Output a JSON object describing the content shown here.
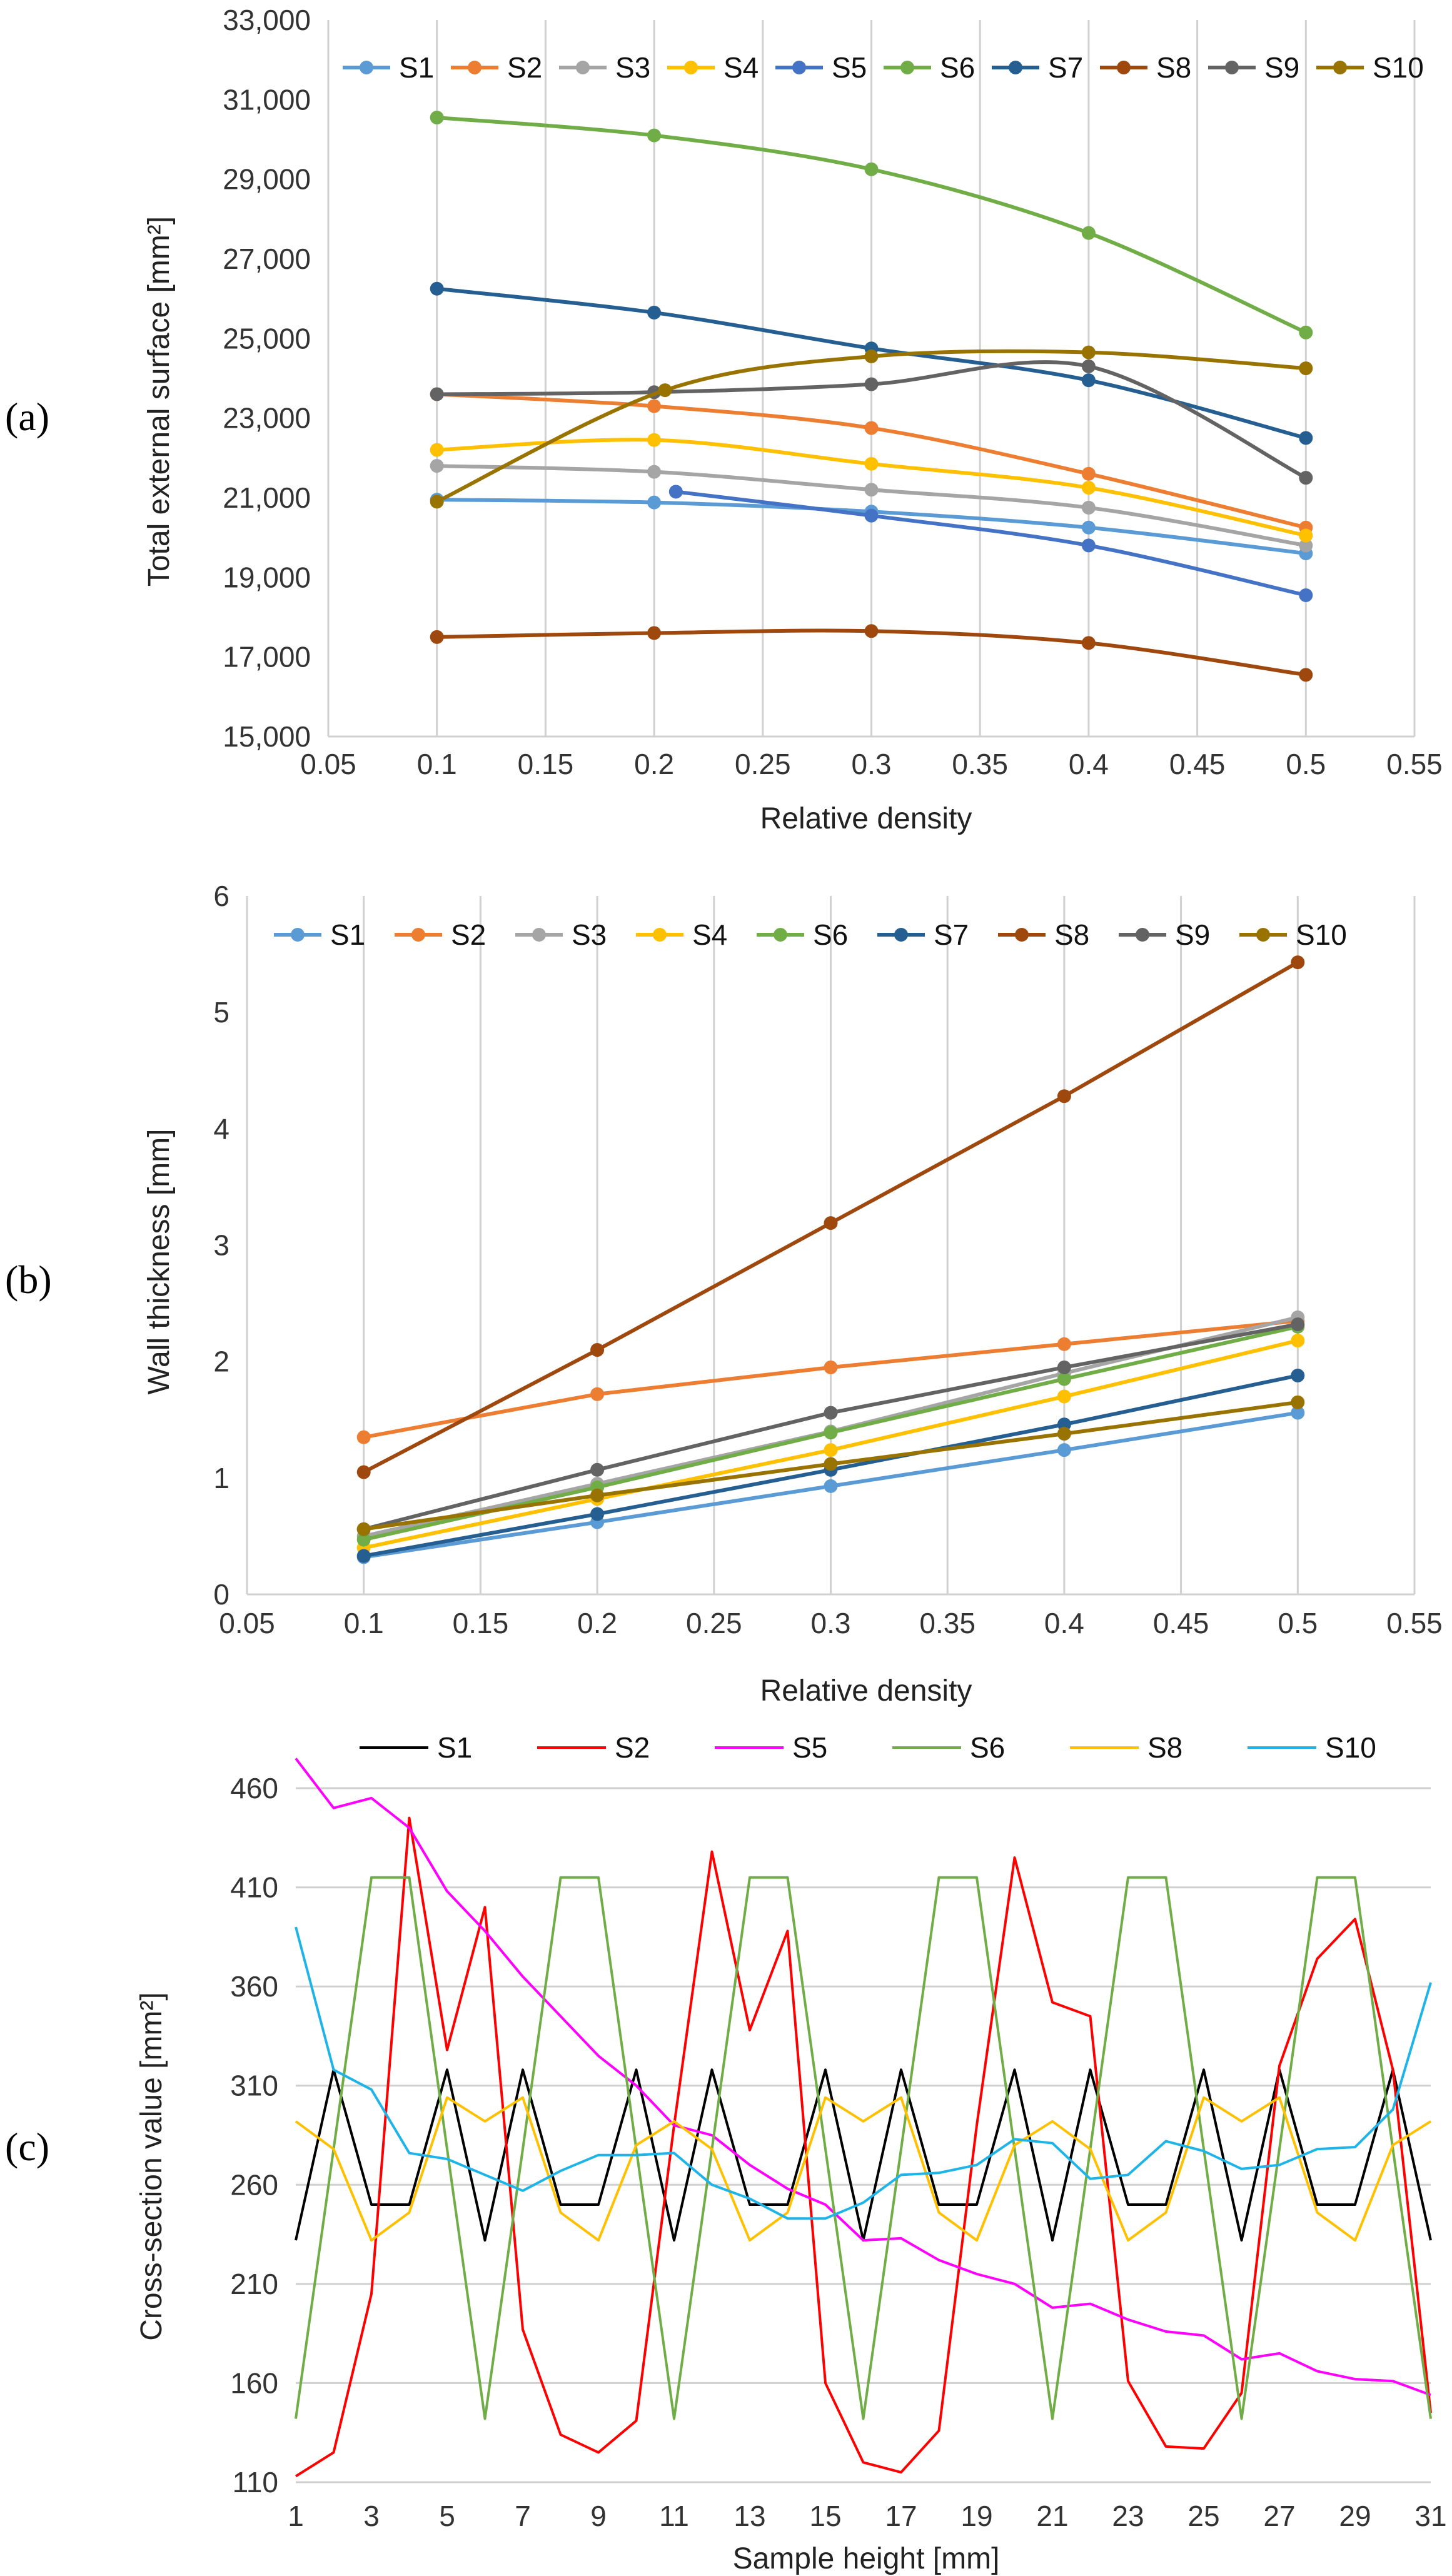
{
  "panels": [
    {
      "label": "(a)",
      "chart_data": {
        "type": "line",
        "xlabel": "Relative density",
        "ylabel": "Total external surface [mm²]",
        "xlim": [
          0.05,
          0.55
        ],
        "ylim": [
          15000,
          33000
        ],
        "xticks": [
          0.05,
          0.1,
          0.15,
          0.2,
          0.25,
          0.3,
          0.35,
          0.4,
          0.45,
          0.5,
          0.55
        ],
        "yticks": [
          15000,
          17000,
          19000,
          21000,
          23000,
          25000,
          27000,
          29000,
          31000,
          33000
        ],
        "xtick_labels": [
          "0.05",
          "0.1",
          "0.15",
          "0.2",
          "0.25",
          "0.3",
          "0.35",
          "0.4",
          "0.45",
          "0.5",
          "0.55"
        ],
        "ytick_labels": [
          "15,000",
          "17,000",
          "19,000",
          "21,000",
          "23,000",
          "25,000",
          "27,000",
          "29,000",
          "31,000",
          "33,000"
        ],
        "grid": "vertical",
        "legend": "top",
        "markers": true,
        "smooth": true,
        "series": [
          {
            "name": "S1",
            "color": "#5b9bd5",
            "x": [
              0.1,
              0.2,
              0.3,
              0.4,
              0.5
            ],
            "values": [
              20950,
              20880,
              20650,
              20250,
              19600
            ]
          },
          {
            "name": "S2",
            "color": "#ed7d31",
            "x": [
              0.1,
              0.2,
              0.3,
              0.4,
              0.5
            ],
            "values": [
              23600,
              23300,
              22750,
              21600,
              20250
            ]
          },
          {
            "name": "S3",
            "color": "#a5a5a5",
            "x": [
              0.1,
              0.2,
              0.3,
              0.4,
              0.5
            ],
            "values": [
              21800,
              21650,
              21200,
              20750,
              19800
            ]
          },
          {
            "name": "S4",
            "color": "#ffc000",
            "x": [
              0.1,
              0.2,
              0.3,
              0.4,
              0.5
            ],
            "values": [
              22200,
              22450,
              21850,
              21250,
              20050
            ]
          },
          {
            "name": "S5",
            "color": "#4472c4",
            "x": [
              0.21,
              0.3,
              0.4,
              0.5
            ],
            "values": [
              21150,
              20550,
              19800,
              18550
            ]
          },
          {
            "name": "S6",
            "color": "#70ad47",
            "x": [
              0.1,
              0.2,
              0.3,
              0.4,
              0.5
            ],
            "values": [
              30550,
              30100,
              29250,
              27650,
              25150
            ]
          },
          {
            "name": "S7",
            "color": "#255e91",
            "x": [
              0.1,
              0.2,
              0.3,
              0.4,
              0.5
            ],
            "values": [
              26250,
              25650,
              24750,
              23950,
              22500
            ]
          },
          {
            "name": "S8",
            "color": "#9e480e",
            "x": [
              0.1,
              0.2,
              0.3,
              0.4,
              0.5
            ],
            "values": [
              17500,
              17600,
              17650,
              17350,
              16550
            ]
          },
          {
            "name": "S9",
            "color": "#636363",
            "x": [
              0.1,
              0.2,
              0.3,
              0.4,
              0.5
            ],
            "values": [
              23600,
              23650,
              23850,
              24300,
              21500
            ]
          },
          {
            "name": "S10",
            "color": "#997300",
            "x": [
              0.1,
              0.205,
              0.3,
              0.4,
              0.5
            ],
            "values": [
              20900,
              23700,
              24550,
              24650,
              24250
            ]
          }
        ]
      }
    },
    {
      "label": "(b)",
      "chart_data": {
        "type": "line",
        "xlabel": "Relative density",
        "ylabel": "Wall thickness [mm]",
        "xlim": [
          0.05,
          0.55
        ],
        "ylim": [
          0,
          6
        ],
        "xticks": [
          0.05,
          0.1,
          0.15,
          0.2,
          0.25,
          0.3,
          0.35,
          0.4,
          0.45,
          0.5,
          0.55
        ],
        "yticks": [
          0,
          1,
          2,
          3,
          4,
          5,
          6
        ],
        "xtick_labels": [
          "0.05",
          "0.1",
          "0.15",
          "0.2",
          "0.25",
          "0.3",
          "0.35",
          "0.4",
          "0.45",
          "0.5",
          "0.55"
        ],
        "ytick_labels": [
          "0",
          "1",
          "2",
          "3",
          "4",
          "5",
          "6"
        ],
        "grid": "vertical",
        "legend": "top",
        "markers": true,
        "smooth": false,
        "series": [
          {
            "name": "S1",
            "color": "#5b9bd5",
            "x": [
              0.1,
              0.2,
              0.3,
              0.4,
              0.5
            ],
            "values": [
              0.32,
              0.62,
              0.93,
              1.24,
              1.56
            ]
          },
          {
            "name": "S2",
            "color": "#ed7d31",
            "x": [
              0.1,
              0.2,
              0.3,
              0.4,
              0.5
            ],
            "values": [
              1.35,
              1.72,
              1.95,
              2.15,
              2.35
            ]
          },
          {
            "name": "S3",
            "color": "#a5a5a5",
            "x": [
              0.1,
              0.2,
              0.3,
              0.4,
              0.5
            ],
            "values": [
              0.5,
              0.95,
              1.4,
              1.9,
              2.38
            ]
          },
          {
            "name": "S4",
            "color": "#ffc000",
            "x": [
              0.1,
              0.2,
              0.3,
              0.4,
              0.5
            ],
            "values": [
              0.4,
              0.82,
              1.24,
              1.7,
              2.18
            ]
          },
          {
            "name": "S6",
            "color": "#70ad47",
            "x": [
              0.1,
              0.2,
              0.3,
              0.4,
              0.5
            ],
            "values": [
              0.47,
              0.92,
              1.39,
              1.85,
              2.3
            ]
          },
          {
            "name": "S7",
            "color": "#255e91",
            "x": [
              0.1,
              0.2,
              0.3,
              0.4,
              0.5
            ],
            "values": [
              0.33,
              0.69,
              1.07,
              1.46,
              1.88
            ]
          },
          {
            "name": "S8",
            "color": "#9e480e",
            "x": [
              0.1,
              0.2,
              0.3,
              0.4,
              0.5
            ],
            "values": [
              1.05,
              2.1,
              3.19,
              4.28,
              5.43
            ]
          },
          {
            "name": "S9",
            "color": "#636363",
            "x": [
              0.1,
              0.2,
              0.3,
              0.4,
              0.5
            ],
            "values": [
              0.56,
              1.07,
              1.56,
              1.95,
              2.32
            ]
          },
          {
            "name": "S10",
            "color": "#997300",
            "x": [
              0.1,
              0.2,
              0.3,
              0.4,
              0.5
            ],
            "values": [
              0.56,
              0.85,
              1.12,
              1.38,
              1.65
            ]
          }
        ]
      }
    },
    {
      "label": "(c)",
      "chart_data": {
        "type": "line",
        "xlabel": "Sample height [mm]",
        "ylabel": "Cross-section value [mm²]",
        "xlim": [
          1,
          31
        ],
        "ylim": [
          110,
          460
        ],
        "xticks": [
          1,
          3,
          5,
          7,
          9,
          11,
          13,
          15,
          17,
          19,
          21,
          23,
          25,
          27,
          29,
          31
        ],
        "yticks": [
          110,
          160,
          210,
          260,
          310,
          360,
          410,
          460
        ],
        "xtick_labels": [
          "1",
          "3",
          "5",
          "7",
          "9",
          "11",
          "13",
          "15",
          "17",
          "19",
          "21",
          "23",
          "25",
          "27",
          "29",
          "31"
        ],
        "ytick_labels": [
          "110",
          "160",
          "210",
          "260",
          "310",
          "360",
          "410",
          "460"
        ],
        "grid": "horizontal",
        "legend": "top",
        "markers": false,
        "smooth": false,
        "series": [
          {
            "name": "S1",
            "color": "#000000",
            "x": [
              1,
              2,
              3,
              4,
              5,
              6,
              7,
              8,
              9,
              10,
              11,
              12,
              13,
              14,
              15,
              16,
              17,
              18,
              19,
              20,
              21,
              22,
              23,
              24,
              25,
              26,
              27,
              28,
              29,
              30,
              31
            ],
            "values": [
              232,
              318,
              250,
              250,
              318,
              232,
              318,
              250,
              250,
              318,
              232,
              318,
              250,
              250,
              318,
              232,
              318,
              250,
              250,
              318,
              232,
              318,
              250,
              250,
              318,
              232,
              318,
              250,
              250,
              318,
              232
            ]
          },
          {
            "name": "S2",
            "color": "#ff0000",
            "x": [
              1,
              2,
              3,
              4,
              5,
              6,
              7,
              8,
              9,
              10,
              11,
              12,
              13,
              14,
              15,
              16,
              17,
              18,
              19,
              20,
              21,
              22,
              23,
              24,
              25,
              26,
              27,
              28,
              29,
              30,
              31
            ],
            "values": [
              113,
              125,
              205,
              445,
              328,
              400,
              187,
              134,
              125,
              141,
              290,
              428,
              338,
              388,
              160,
              120,
              115,
              136,
              290,
              425,
              352,
              345,
              161,
              128,
              127,
              155,
              320,
              374,
              394,
              318,
              145
            ]
          },
          {
            "name": "S5",
            "color": "#ff00ff",
            "x": [
              1,
              2,
              3,
              4,
              5,
              6,
              7,
              8,
              9,
              10,
              11,
              12,
              13,
              14,
              15,
              16,
              17,
              18,
              19,
              20,
              21,
              22,
              23,
              24,
              25,
              26,
              27,
              28,
              29,
              30,
              31
            ],
            "values": [
              475,
              450,
              455,
              440,
              408,
              388,
              365,
              345,
              325,
              310,
              290,
              285,
              270,
              258,
              250,
              232,
              233,
              222,
              215,
              210,
              198,
              200,
              192,
              186,
              184,
              172,
              175,
              166,
              162,
              161,
              154
            ]
          },
          {
            "name": "S6",
            "color": "#70ad47",
            "x": [
              1,
              2,
              3,
              4,
              5,
              6,
              7,
              8,
              9,
              10,
              11,
              12,
              13,
              14,
              15,
              16,
              17,
              18,
              19,
              20,
              21,
              22,
              23,
              24,
              25,
              26,
              27,
              28,
              29,
              30,
              31
            ],
            "values": [
              142,
              278,
              415,
              415,
              278,
              142,
              278,
              415,
              415,
              278,
              142,
              278,
              415,
              415,
              278,
              142,
              278,
              415,
              415,
              278,
              142,
              278,
              415,
              415,
              278,
              142,
              278,
              415,
              415,
              278,
              142
            ]
          },
          {
            "name": "S8",
            "color": "#ffc000",
            "x": [
              1,
              2,
              3,
              4,
              5,
              6,
              7,
              8,
              9,
              10,
              11,
              12,
              13,
              14,
              15,
              16,
              17,
              18,
              19,
              20,
              21,
              22,
              23,
              24,
              25,
              26,
              27,
              28,
              29,
              30,
              31
            ],
            "values": [
              292,
              278,
              232,
              246,
              304,
              292,
              304,
              246,
              232,
              280,
              292,
              278,
              232,
              246,
              304,
              292,
              304,
              246,
              232,
              280,
              292,
              278,
              232,
              246,
              304,
              292,
              304,
              246,
              232,
              280,
              292
            ]
          },
          {
            "name": "S10",
            "color": "#1fb4e8",
            "x": [
              1,
              2,
              3,
              4,
              5,
              6,
              7,
              8,
              9,
              10,
              11,
              12,
              13,
              14,
              15,
              16,
              17,
              18,
              19,
              20,
              21,
              22,
              23,
              24,
              25,
              26,
              27,
              28,
              29,
              30,
              31
            ],
            "values": [
              390,
              318,
              308,
              276,
              273,
              265,
              257,
              267,
              275,
              275,
              276,
              260,
              253,
              243,
              243,
              251,
              265,
              266,
              270,
              283,
              281,
              263,
              265,
              282,
              277,
              268,
              270,
              278,
              279,
              298,
              362
            ]
          }
        ]
      }
    }
  ]
}
